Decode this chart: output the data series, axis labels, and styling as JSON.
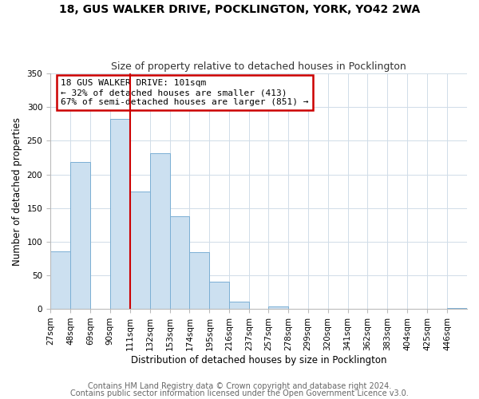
{
  "title": "18, GUS WALKER DRIVE, POCKLINGTON, YORK, YO42 2WA",
  "subtitle": "Size of property relative to detached houses in Pocklington",
  "xlabel": "Distribution of detached houses by size in Pocklington",
  "ylabel": "Number of detached properties",
  "bar_labels": [
    "27sqm",
    "48sqm",
    "69sqm",
    "90sqm",
    "111sqm",
    "132sqm",
    "153sqm",
    "174sqm",
    "195sqm",
    "216sqm",
    "237sqm",
    "257sqm",
    "278sqm",
    "299sqm",
    "320sqm",
    "341sqm",
    "362sqm",
    "383sqm",
    "404sqm",
    "425sqm",
    "446sqm"
  ],
  "bar_values": [
    85,
    218,
    0,
    282,
    175,
    231,
    138,
    84,
    41,
    11,
    0,
    4,
    0,
    0,
    0,
    0,
    0,
    0,
    0,
    0,
    1
  ],
  "bar_color": "#cce0f0",
  "bar_edge_color": "#7bafd4",
  "property_line_x": 111,
  "property_line_label": "18 GUS WALKER DRIVE: 101sqm",
  "annotation_line1": "← 32% of detached houses are smaller (413)",
  "annotation_line2": "67% of semi-detached houses are larger (851) →",
  "annotation_box_color": "#ffffff",
  "annotation_box_edge": "#cc0000",
  "vline_color": "#cc0000",
  "bin_edges": [
    27,
    48,
    69,
    90,
    111,
    132,
    153,
    174,
    195,
    216,
    237,
    257,
    278,
    299,
    320,
    341,
    362,
    383,
    404,
    425,
    446,
    467
  ],
  "ylim": [
    0,
    350
  ],
  "yticks": [
    0,
    50,
    100,
    150,
    200,
    250,
    300,
    350
  ],
  "footer1": "Contains HM Land Registry data © Crown copyright and database right 2024.",
  "footer2": "Contains public sector information licensed under the Open Government Licence v3.0.",
  "title_fontsize": 10,
  "subtitle_fontsize": 9,
  "axis_label_fontsize": 8.5,
  "tick_fontsize": 7.5,
  "annotation_fontsize": 8,
  "footer_fontsize": 7
}
